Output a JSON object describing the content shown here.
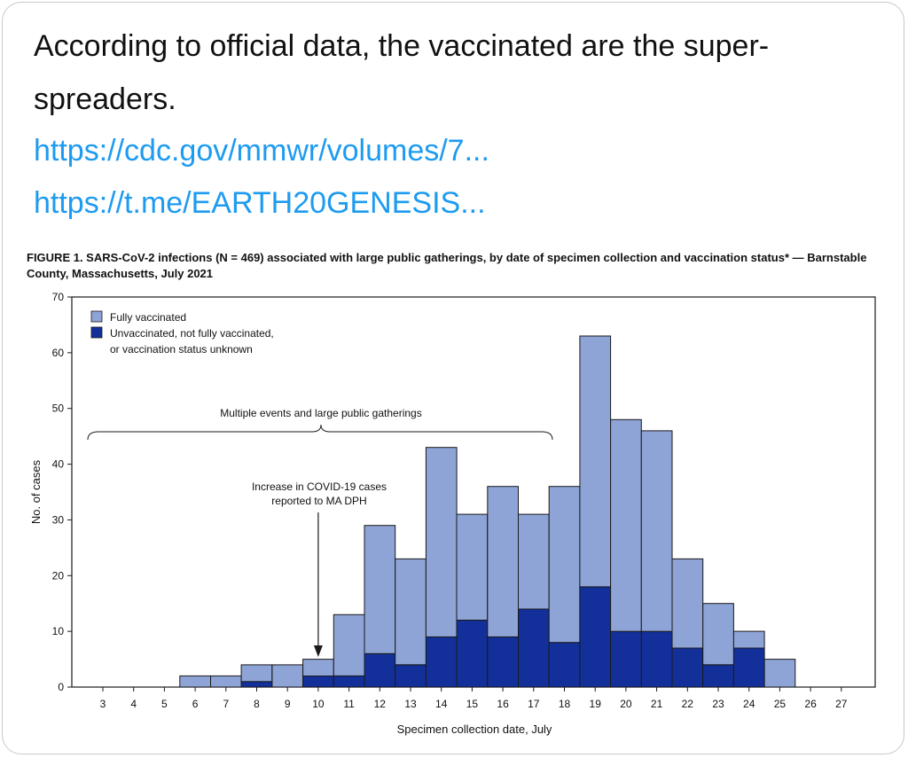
{
  "post": {
    "text": "According to official data, the vaccinated are the super-spreaders.",
    "links": [
      "https://cdc.gov/mmwr/volumes/7...",
      "https://t.me/EARTH20GENESIS..."
    ]
  },
  "colors": {
    "link": "#1d9bf0",
    "fully_vaccinated": "#8ea3d6",
    "unvaccinated": "#13309a",
    "bar_stroke": "#1a1a1a"
  },
  "chart_data": {
    "type": "bar",
    "stacked": true,
    "title": "FIGURE 1. SARS-CoV-2 infections (N = 469) associated with large public gatherings, by date of specimen collection and vaccination status* — Barnstable County, Massachusetts, July 2021",
    "xlabel": "Specimen collection date, July",
    "ylabel": "No. of cases",
    "ylim": [
      0,
      70
    ],
    "yticks": [
      0,
      10,
      20,
      30,
      40,
      50,
      60,
      70
    ],
    "categories": [
      "3",
      "4",
      "5",
      "6",
      "7",
      "8",
      "9",
      "10",
      "11",
      "12",
      "13",
      "14",
      "15",
      "16",
      "17",
      "18",
      "19",
      "20",
      "21",
      "22",
      "23",
      "24",
      "25",
      "26",
      "27"
    ],
    "series": [
      {
        "name": "Unvaccinated, not fully vaccinated, or vaccination status unknown",
        "values": [
          0,
          0,
          0,
          0,
          0,
          1,
          0,
          2,
          2,
          6,
          4,
          9,
          12,
          9,
          14,
          8,
          18,
          10,
          10,
          7,
          4,
          7,
          0,
          0,
          0
        ]
      },
      {
        "name": "Fully vaccinated",
        "values": [
          0,
          0,
          0,
          2,
          2,
          3,
          4,
          3,
          11,
          23,
          19,
          34,
          19,
          27,
          17,
          28,
          45,
          38,
          36,
          16,
          11,
          3,
          5,
          0,
          0
        ]
      }
    ],
    "legend": {
      "position": "top-left",
      "entries": [
        "Fully vaccinated",
        "Unvaccinated, not fully vaccinated, or vaccination status unknown"
      ]
    },
    "annotations": {
      "bracket_label": "Multiple events and large public gatherings",
      "arrow_label_line1": "Increase in COVID-19 cases",
      "arrow_label_line2": "reported to MA DPH",
      "arrow_at": "10"
    },
    "grid": false
  }
}
